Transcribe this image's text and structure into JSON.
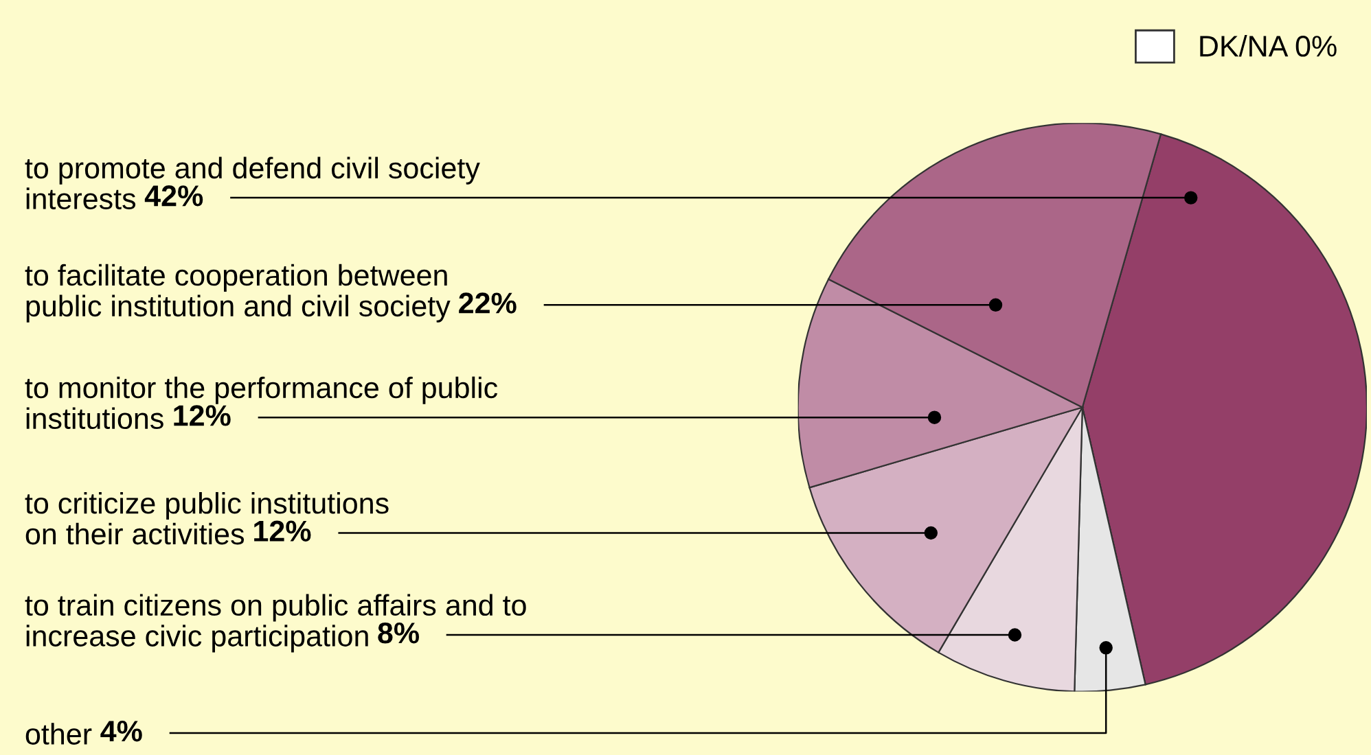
{
  "chart_data": {
    "type": "pie",
    "categories": [
      "to promote and defend civil society\ninterests",
      "to facilitate cooperation between\npublic institution and civil society",
      "to monitor the performance of public\ninstitutions",
      "to criticize public institutions\non their activities",
      "to train citizens on public affairs and to\nincrease civic participation",
      "other",
      "DK/NA"
    ],
    "values": [
      42,
      22,
      12,
      12,
      8,
      4,
      0
    ],
    "value_labels": [
      "42%",
      "22%",
      "12%",
      "12%",
      "8%",
      "4%",
      "0%"
    ],
    "colors": [
      "#943f68",
      "#ab6688",
      "#c08ca6",
      "#d4b0c2",
      "#e8d8df",
      "#e6e6e6",
      "#ffffff"
    ],
    "legend": "top right"
  }
}
